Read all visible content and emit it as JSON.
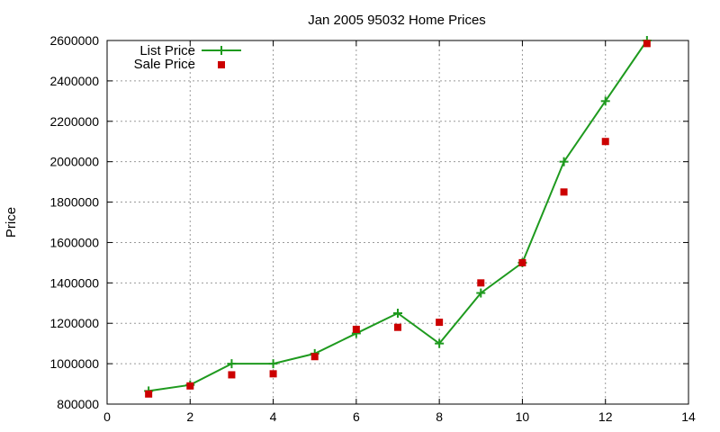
{
  "chart_data": {
    "type": "line",
    "title": "Jan 2005 95032 Home Prices",
    "xlabel": "",
    "ylabel": "Price",
    "xlim": [
      0,
      14
    ],
    "ylim": [
      800000,
      2600000
    ],
    "x_ticks": [
      0,
      2,
      4,
      6,
      8,
      10,
      12,
      14
    ],
    "y_ticks": [
      800000,
      1000000,
      1200000,
      1400000,
      1600000,
      1800000,
      2000000,
      2200000,
      2400000,
      2600000
    ],
    "grid": true,
    "legend_position": "top-left",
    "series": [
      {
        "name": "List Price",
        "style": "line-with-plus-markers",
        "color": "#1e9a1e",
        "x": [
          1,
          2,
          3,
          4,
          5,
          6,
          7,
          8,
          9,
          10,
          11,
          12,
          13
        ],
        "y": [
          865000,
          895000,
          1000000,
          1000000,
          1050000,
          1150000,
          1250000,
          1100000,
          1350000,
          1500000,
          2000000,
          2300000,
          2600000
        ]
      },
      {
        "name": "Sale Price",
        "style": "square-markers",
        "color": "#cc0000",
        "x": [
          1,
          2,
          3,
          4,
          5,
          6,
          7,
          8,
          9,
          10,
          11,
          12,
          13
        ],
        "y": [
          850000,
          890000,
          945000,
          950000,
          1035000,
          1170000,
          1180000,
          1205000,
          1400000,
          1500000,
          1850000,
          2100000,
          2585000
        ]
      }
    ]
  }
}
